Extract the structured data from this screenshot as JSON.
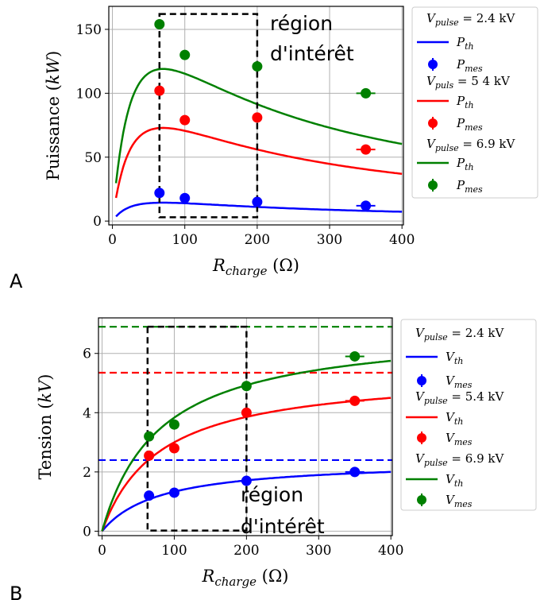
{
  "chart_data": [
    {
      "type": "line",
      "panel_label": "A",
      "xlabel": "R_charge (Ω)",
      "xlabel_main": "R",
      "xlabel_sub": "charge",
      "xlabel_unit": "(Ω)",
      "ylabel": "Puissance (kW)",
      "ylabel_main": "Puissance",
      "ylabel_unit": "kW",
      "xlim": [
        -5,
        402
      ],
      "ylim": [
        -3,
        168
      ],
      "xticks": [
        0,
        100,
        200,
        300,
        400
      ],
      "yticks": [
        0,
        50,
        100,
        150
      ],
      "grid": true,
      "legend_position": "outside-right",
      "annotation": [
        "région",
        "d'intérêt"
      ],
      "region": {
        "x": [
          65,
          200
        ],
        "y": [
          3,
          162
        ]
      },
      "series": [
        {
          "name": "P_th",
          "group": "V_pulse = 2.4 kV",
          "kind": "theory",
          "color": "#0000ff",
          "Vpulse": 2.4
        },
        {
          "name": "P_mes",
          "group": "V_pulse = 2.4 kV",
          "kind": "measured",
          "color": "#0000ff",
          "points": [
            {
              "x": 65,
              "y": 22
            },
            {
              "x": 100,
              "y": 18
            },
            {
              "x": 200,
              "y": 15
            },
            {
              "x": 350,
              "y": 12
            }
          ]
        },
        {
          "name": "P_th",
          "group": "V_puls = 5 4 kV",
          "kind": "theory",
          "color": "#ff0000",
          "Vpulse": 5.4
        },
        {
          "name": "P_mes",
          "group": "V_puls = 5 4 kV",
          "kind": "measured",
          "color": "#ff0000",
          "points": [
            {
              "x": 65,
              "y": 102
            },
            {
              "x": 100,
              "y": 79
            },
            {
              "x": 200,
              "y": 81
            },
            {
              "x": 350,
              "y": 56
            }
          ]
        },
        {
          "name": "P_th",
          "group": "V_pulse = 6.9 kV",
          "kind": "theory",
          "color": "#008000",
          "Vpulse": 6.9
        },
        {
          "name": "P_mes",
          "group": "V_pulse = 6.9 kV",
          "kind": "measured",
          "color": "#008000",
          "points": [
            {
              "x": 65,
              "y": 154
            },
            {
              "x": 100,
              "y": 130
            },
            {
              "x": 200,
              "y": 121
            },
            {
              "x": 350,
              "y": 100
            }
          ]
        }
      ],
      "legend": [
        {
          "title_main": "V",
          "title_sub": "pulse",
          "title_rest": " =  2.4 kV",
          "label_main": "P",
          "label_sub": "th",
          "label2_main": "P",
          "label2_sub": "mes",
          "color": "#0000ff"
        },
        {
          "title_main": "V",
          "title_sub": "puls",
          "title_rest": " =  5 4 kV",
          "label_main": "P",
          "label_sub": "th",
          "label2_main": "P",
          "label2_sub": "mes",
          "color": "#ff0000"
        },
        {
          "title_main": "V",
          "title_sub": "pulse",
          "title_rest": " =  6.9 kV",
          "label_main": "P",
          "label_sub": "th",
          "label2_main": "P",
          "label2_sub": "mes",
          "color": "#008000"
        }
      ]
    },
    {
      "type": "line",
      "panel_label": "B",
      "xlabel": "R_charge (Ω)",
      "xlabel_main": "R",
      "xlabel_sub": "charge",
      "xlabel_unit": "(Ω)",
      "ylabel": "Tension (kV)",
      "ylabel_main": "Tension",
      "ylabel_unit": "kV",
      "xlim": [
        -5,
        402
      ],
      "ylim": [
        -0.15,
        7.2
      ],
      "xticks": [
        0,
        100,
        200,
        300,
        400
      ],
      "yticks": [
        0,
        2,
        4,
        6
      ],
      "grid": true,
      "legend_position": "outside-right",
      "annotation": [
        "région",
        "d'intérêt"
      ],
      "region": {
        "x": [
          63,
          200
        ],
        "y": [
          0.02,
          6.9
        ]
      },
      "series": [
        {
          "name": "V_th",
          "group": "V_pulse = 2.4 kV",
          "kind": "theory",
          "color": "#0000ff",
          "Vpulse": 2.4
        },
        {
          "name": "V_mes",
          "group": "V_pulse = 2.4 kV",
          "kind": "measured",
          "color": "#0000ff",
          "points": [
            {
              "x": 65,
              "y": 1.2
            },
            {
              "x": 100,
              "y": 1.3
            },
            {
              "x": 200,
              "y": 1.7
            },
            {
              "x": 350,
              "y": 2.0
            }
          ]
        },
        {
          "name": "V_th",
          "group": "V_pulse = 5.4 kV",
          "kind": "theory",
          "color": "#ff0000",
          "Vpulse": 5.4
        },
        {
          "name": "V_mes",
          "group": "V_pulse = 5.4 kV",
          "kind": "measured",
          "color": "#ff0000",
          "points": [
            {
              "x": 65,
              "y": 2.55
            },
            {
              "x": 100,
              "y": 2.8
            },
            {
              "x": 200,
              "y": 4.0
            },
            {
              "x": 350,
              "y": 4.4
            }
          ]
        },
        {
          "name": "V_th",
          "group": "V_pulse = 6.9 kV",
          "kind": "theory",
          "color": "#008000",
          "Vpulse": 6.9
        },
        {
          "name": "V_mes",
          "group": "V_pulse = 6.9 kV",
          "kind": "measured",
          "color": "#008000",
          "points": [
            {
              "x": 65,
              "y": 3.2
            },
            {
              "x": 100,
              "y": 3.6
            },
            {
              "x": 200,
              "y": 4.9
            },
            {
              "x": 350,
              "y": 5.9
            }
          ]
        }
      ],
      "hlines": [
        {
          "y": 2.4,
          "color": "#0000ff"
        },
        {
          "y": 5.35,
          "color": "#ff0000"
        },
        {
          "y": 6.9,
          "color": "#008000"
        }
      ],
      "legend": [
        {
          "title_main": "V",
          "title_sub": "pulse",
          "title_rest": " =  2.4 kV",
          "label_main": "V",
          "label_sub": "th",
          "label2_main": "V",
          "label2_sub": "mes",
          "color": "#0000ff"
        },
        {
          "title_main": "V",
          "title_sub": "pulse",
          "title_rest": " =  5.4 kV",
          "label_main": "V",
          "label_sub": "th",
          "label2_main": "V",
          "label2_sub": "mes",
          "color": "#ff0000"
        },
        {
          "title_main": "V",
          "title_sub": "pulse",
          "title_rest": " =  6.9 kV",
          "label_main": "V",
          "label_sub": "th",
          "label2_main": "V",
          "label2_sub": "mes",
          "color": "#008000"
        }
      ]
    }
  ]
}
